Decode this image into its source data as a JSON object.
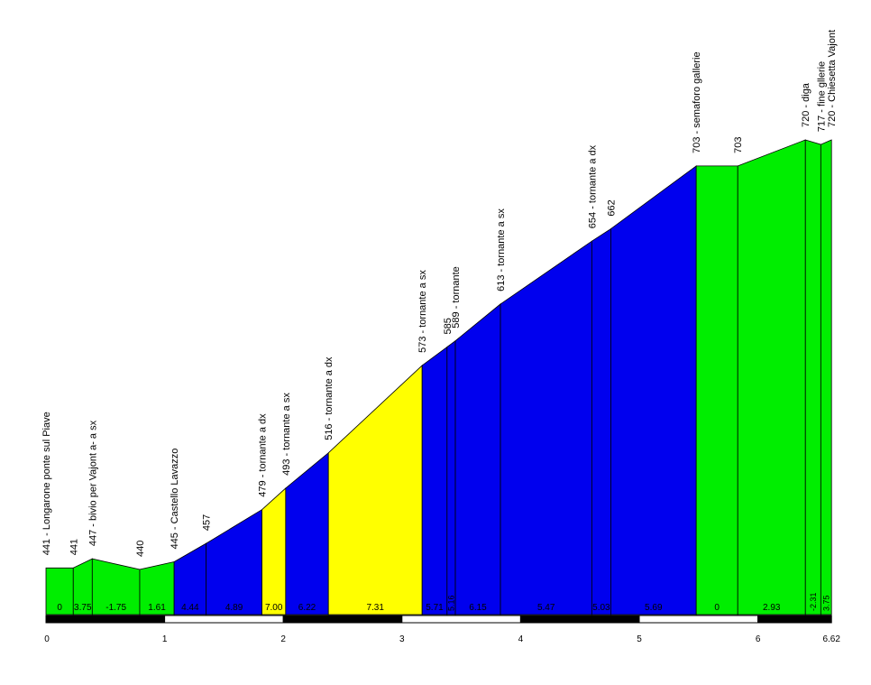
{
  "chart_data": {
    "type": "area",
    "x_unit": "km",
    "x_ticks": [
      "0",
      "1",
      "2",
      "3",
      "4",
      "5",
      "6",
      "6.62"
    ],
    "x_tick_values": [
      0,
      1,
      2,
      3,
      4,
      5,
      6,
      6.62
    ],
    "xlim": [
      0,
      6.62
    ],
    "ylim": [
      420,
      735
    ],
    "grid": false,
    "profile": [
      {
        "x": 0,
        "y": 441
      },
      {
        "x": 0.23,
        "y": 441
      },
      {
        "x": 0.39,
        "y": 447
      },
      {
        "x": 0.79,
        "y": 440
      },
      {
        "x": 1.08,
        "y": 445
      },
      {
        "x": 1.35,
        "y": 457
      },
      {
        "x": 1.82,
        "y": 479
      },
      {
        "x": 2.02,
        "y": 493
      },
      {
        "x": 2.38,
        "y": 516
      },
      {
        "x": 3.17,
        "y": 573
      },
      {
        "x": 3.38,
        "y": 585
      },
      {
        "x": 3.45,
        "y": 589
      },
      {
        "x": 3.83,
        "y": 613
      },
      {
        "x": 4.6,
        "y": 654
      },
      {
        "x": 4.76,
        "y": 662
      },
      {
        "x": 5.48,
        "y": 703
      },
      {
        "x": 5.83,
        "y": 703
      },
      {
        "x": 6.4,
        "y": 720
      },
      {
        "x": 6.53,
        "y": 717
      },
      {
        "x": 6.62,
        "y": 720
      }
    ],
    "segments": [
      {
        "gradient": "0",
        "color": "#00ee00"
      },
      {
        "gradient": "3.75",
        "color": "#00ee00"
      },
      {
        "gradient": "-1.75",
        "color": "#00ee00"
      },
      {
        "gradient": "1.61",
        "color": "#00ee00"
      },
      {
        "gradient": "4.44",
        "color": "#0000ee"
      },
      {
        "gradient": "4.89",
        "color": "#0000ee"
      },
      {
        "gradient": "7.00",
        "color": "#ffff00"
      },
      {
        "gradient": "6.22",
        "color": "#0000ee"
      },
      {
        "gradient": "7.31",
        "color": "#ffff00"
      },
      {
        "gradient": "5.71",
        "color": "#0000ee"
      },
      {
        "gradient": "5.16",
        "color": "#0000ee"
      },
      {
        "gradient": "6.15",
        "color": "#0000ee"
      },
      {
        "gradient": "5.47",
        "color": "#0000ee"
      },
      {
        "gradient": "5.03",
        "color": "#0000ee"
      },
      {
        "gradient": "5.69",
        "color": "#0000ee"
      },
      {
        "gradient": "0",
        "color": "#00ee00"
      },
      {
        "gradient": "2.93",
        "color": "#00ee00"
      },
      {
        "gradient": "-2.31",
        "color": "#00ee00"
      },
      {
        "gradient": "3.75",
        "color": "#00ee00"
      }
    ],
    "waypoints": [
      "441 - Longarone ponte sul Piave",
      "441",
      "447 - bivio per Vajont a- a sx",
      "440",
      "445 - Castello Lavazzo",
      "457",
      "479 - tornante a dx",
      "493 - tornante a sx",
      "516 - tornante a dx",
      "573 - tornante a sx",
      "585",
      "589 - tornante",
      "613 - tornante a sx",
      "654 - tornante a dx",
      "662",
      "703 - semaforo gallerie",
      "703",
      "720 - diga",
      "717 - fine gllerie",
      "720 - Chiesetta Vajont"
    ],
    "colors": {
      "easy": "#00ee00",
      "medium": "#0000ee",
      "hard": "#ffff00",
      "scale_dark": "#000000",
      "scale_light": "#ffffff"
    }
  }
}
